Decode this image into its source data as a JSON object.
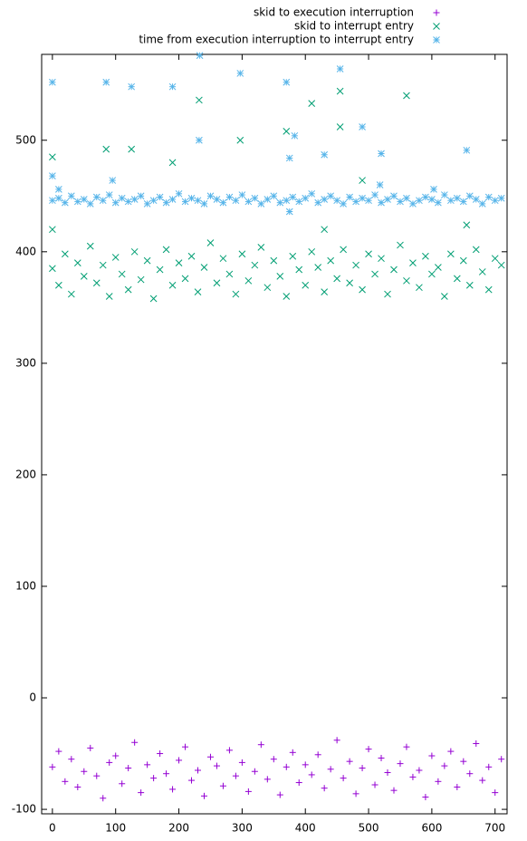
{
  "chart_data": {
    "type": "scatter",
    "xlim": [
      -17,
      719
    ],
    "ylim": [
      -104,
      577
    ],
    "xticks": [
      0,
      100,
      200,
      300,
      400,
      500,
      600,
      700
    ],
    "yticks": [
      -100,
      0,
      100,
      200,
      300,
      400,
      500
    ],
    "legend": "top-right",
    "series": [
      {
        "name": "skid to execution interruption",
        "color": "#9400d3",
        "marker": "plus",
        "x": [
          0,
          10,
          20,
          30,
          40,
          50,
          60,
          70,
          80,
          90,
          100,
          110,
          120,
          130,
          140,
          150,
          160,
          170,
          180,
          190,
          200,
          210,
          220,
          230,
          240,
          250,
          260,
          270,
          280,
          290,
          300,
          310,
          320,
          330,
          340,
          350,
          360,
          370,
          380,
          390,
          400,
          410,
          420,
          430,
          440,
          450,
          460,
          470,
          480,
          490,
          500,
          510,
          520,
          530,
          540,
          550,
          560,
          570,
          580,
          590,
          600,
          610,
          620,
          630,
          640,
          650,
          660,
          670,
          680,
          690,
          700,
          710
        ],
        "values": [
          -62,
          -48,
          -75,
          -55,
          -80,
          -66,
          -45,
          -70,
          -90,
          -58,
          -52,
          -77,
          -63,
          -40,
          -85,
          -60,
          -72,
          -50,
          -68,
          -82,
          -56,
          -44,
          -74,
          -65,
          -88,
          -53,
          -61,
          -79,
          -47,
          -70,
          -58,
          -84,
          -66,
          -42,
          -73,
          -55,
          -87,
          -62,
          -49,
          -76,
          -60,
          -69,
          -51,
          -81,
          -64,
          -38,
          -72,
          -57,
          -86,
          -63,
          -46,
          -78,
          -54,
          -67,
          -83,
          -59,
          -44,
          -71,
          -65,
          -89,
          -52,
          -75,
          -61,
          -48,
          -80,
          -57,
          -68,
          -41,
          -74,
          -62,
          -85,
          -55
        ]
      },
      {
        "name": "skid to interrupt entry",
        "color": "#009e73",
        "marker": "cross",
        "x": [
          0,
          10,
          20,
          30,
          40,
          50,
          60,
          70,
          80,
          90,
          100,
          110,
          120,
          130,
          140,
          150,
          160,
          170,
          180,
          190,
          200,
          210,
          220,
          230,
          240,
          250,
          260,
          270,
          280,
          290,
          300,
          310,
          320,
          330,
          340,
          350,
          360,
          370,
          380,
          390,
          400,
          410,
          420,
          430,
          440,
          450,
          460,
          470,
          480,
          490,
          500,
          510,
          520,
          530,
          540,
          550,
          560,
          570,
          580,
          590,
          600,
          610,
          620,
          630,
          640,
          650,
          660,
          670,
          680,
          690,
          700,
          710,
          0,
          0,
          85,
          125,
          190,
          232,
          297,
          370,
          410,
          430,
          455,
          455,
          490,
          560,
          655
        ],
        "values": [
          385,
          370,
          398,
          362,
          390,
          378,
          405,
          372,
          388,
          360,
          395,
          380,
          366,
          400,
          375,
          392,
          358,
          384,
          402,
          370,
          390,
          376,
          396,
          364,
          386,
          408,
          372,
          394,
          380,
          362,
          398,
          374,
          388,
          404,
          368,
          392,
          378,
          360,
          396,
          384,
          370,
          400,
          386,
          364,
          392,
          376,
          402,
          372,
          388,
          366,
          398,
          380,
          394,
          362,
          384,
          406,
          374,
          390,
          368,
          396,
          380,
          386,
          360,
          398,
          376,
          392,
          370,
          402,
          382,
          366,
          394,
          388,
          485,
          420,
          492,
          492,
          480,
          536,
          500,
          508,
          533,
          420,
          544,
          512,
          464,
          540,
          424
        ]
      },
      {
        "name": "time from execution interruption to interrupt entry",
        "color": "#56b4e9",
        "marker": "star",
        "x": [
          0,
          10,
          20,
          30,
          40,
          50,
          60,
          70,
          80,
          90,
          100,
          110,
          120,
          130,
          140,
          150,
          160,
          170,
          180,
          190,
          200,
          210,
          220,
          230,
          240,
          250,
          260,
          270,
          280,
          290,
          300,
          310,
          320,
          330,
          340,
          350,
          360,
          370,
          380,
          390,
          400,
          410,
          420,
          430,
          440,
          450,
          460,
          470,
          480,
          490,
          500,
          510,
          520,
          530,
          540,
          550,
          560,
          570,
          580,
          590,
          600,
          610,
          620,
          630,
          640,
          650,
          660,
          670,
          680,
          690,
          700,
          710,
          0,
          0,
          10,
          85,
          95,
          125,
          190,
          232,
          233,
          297,
          370,
          375,
          375,
          383,
          430,
          455,
          490,
          518,
          520,
          603,
          655
        ],
        "values": [
          446,
          448,
          444,
          450,
          445,
          447,
          443,
          449,
          446,
          451,
          444,
          448,
          445,
          447,
          450,
          443,
          446,
          449,
          444,
          447,
          452,
          445,
          448,
          446,
          443,
          450,
          447,
          444,
          449,
          446,
          451,
          445,
          448,
          443,
          447,
          450,
          444,
          446,
          449,
          445,
          448,
          452,
          444,
          447,
          450,
          446,
          443,
          449,
          445,
          448,
          446,
          451,
          444,
          447,
          450,
          445,
          448,
          443,
          446,
          449,
          447,
          444,
          451,
          446,
          448,
          445,
          450,
          447,
          443,
          449,
          446,
          448,
          552,
          468,
          456,
          552,
          464,
          548,
          548,
          500,
          576,
          560,
          552,
          484,
          436,
          504,
          487,
          564,
          512,
          460,
          488,
          456,
          491
        ]
      }
    ]
  }
}
